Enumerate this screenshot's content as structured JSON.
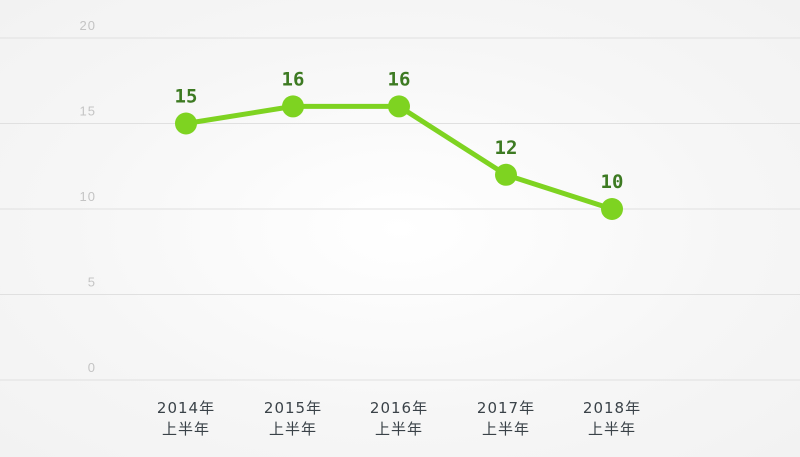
{
  "chart_data": {
    "type": "line",
    "title": "",
    "xlabel": "",
    "ylabel": "",
    "categories": [
      [
        "2014年",
        "上半年"
      ],
      [
        "2015年",
        "上半年"
      ],
      [
        "2016年",
        "上半年"
      ],
      [
        "2017年",
        "上半年"
      ],
      [
        "2018年",
        "上半年"
      ]
    ],
    "values": [
      15,
      16,
      16,
      12,
      10
    ],
    "data_labels": [
      "15",
      "16",
      "16",
      "12",
      "10"
    ],
    "y_ticks": [
      "0",
      "5",
      "10",
      "15",
      "20"
    ],
    "ylim": [
      0,
      20
    ],
    "grid": true,
    "colors": {
      "line": "#7ed321",
      "label": "#3d7a22",
      "grid": "#e0e0e0"
    }
  }
}
